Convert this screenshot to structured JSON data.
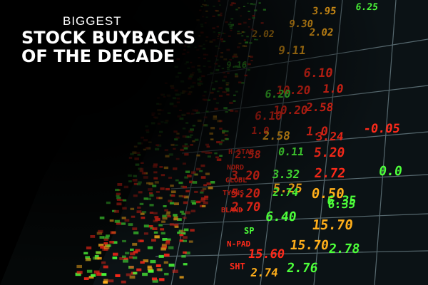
{
  "overlay": {
    "eyebrow": "BIGGEST",
    "headline_lines": [
      "STOCK BUYBACKS",
      "OF THE DECADE"
    ]
  },
  "board": {
    "colors": {
      "red": "#ff2a1a",
      "green": "#4dff3a",
      "amber": "#ffae1a",
      "yellow_green": "#d8ff3a",
      "grid": "#6a7f86"
    },
    "readings": [
      {
        "text": "3.95",
        "color": "amber"
      },
      {
        "text": "6.25",
        "color": "green"
      },
      {
        "text": "9.30",
        "color": "amber"
      },
      {
        "text": "2.02",
        "color": "amber"
      },
      {
        "text": "9.11",
        "color": "amber"
      },
      {
        "text": "2.02",
        "color": "amber"
      },
      {
        "text": "9.16",
        "color": "green"
      },
      {
        "text": "6.10",
        "color": "red"
      },
      {
        "text": "10.20",
        "color": "red"
      },
      {
        "text": "1.0",
        "color": "red"
      },
      {
        "text": "6.20",
        "color": "green"
      },
      {
        "text": "6.10",
        "color": "red"
      },
      {
        "text": "10.20",
        "color": "red"
      },
      {
        "text": "2.58",
        "color": "red"
      },
      {
        "text": "1.0",
        "color": "red"
      },
      {
        "text": "2.58",
        "color": "amber"
      },
      {
        "text": "1.0",
        "color": "red"
      },
      {
        "text": "3.24",
        "color": "red"
      },
      {
        "text": "-0.05",
        "color": "red"
      },
      {
        "text": "2.58",
        "color": "red"
      },
      {
        "text": "0.11",
        "color": "green"
      },
      {
        "text": "5.20",
        "color": "red"
      },
      {
        "text": "3.20",
        "color": "red"
      },
      {
        "text": "3.32",
        "color": "green"
      },
      {
        "text": "2.72",
        "color": "red"
      },
      {
        "text": "5.25",
        "color": "amber"
      },
      {
        "text": "0.50",
        "color": "amber"
      },
      {
        "text": "0.0",
        "color": "green"
      },
      {
        "text": "5.20",
        "color": "red"
      },
      {
        "text": "2.74",
        "color": "green"
      },
      {
        "text": "6.35",
        "color": "green"
      },
      {
        "text": "2.70",
        "color": "red"
      },
      {
        "text": "6.35",
        "color": "green"
      },
      {
        "text": "6.40",
        "color": "green"
      },
      {
        "text": "15.70",
        "color": "amber"
      },
      {
        "text": "15.60",
        "color": "red"
      },
      {
        "text": "15.70",
        "color": "amber"
      },
      {
        "text": "2.78",
        "color": "green"
      },
      {
        "text": "2.74",
        "color": "amber"
      },
      {
        "text": "2.76",
        "color": "green"
      }
    ],
    "tickers": [
      {
        "text": "SP",
        "color": "green"
      },
      {
        "text": "H-STAR",
        "color": "red"
      },
      {
        "text": "NORD",
        "color": "red"
      },
      {
        "text": "GLOBL",
        "color": "red"
      },
      {
        "text": "TYONS",
        "color": "red"
      },
      {
        "text": "BLAND",
        "color": "red"
      },
      {
        "text": "N-PAD",
        "color": "red"
      },
      {
        "text": "SHT",
        "color": "red"
      }
    ]
  }
}
